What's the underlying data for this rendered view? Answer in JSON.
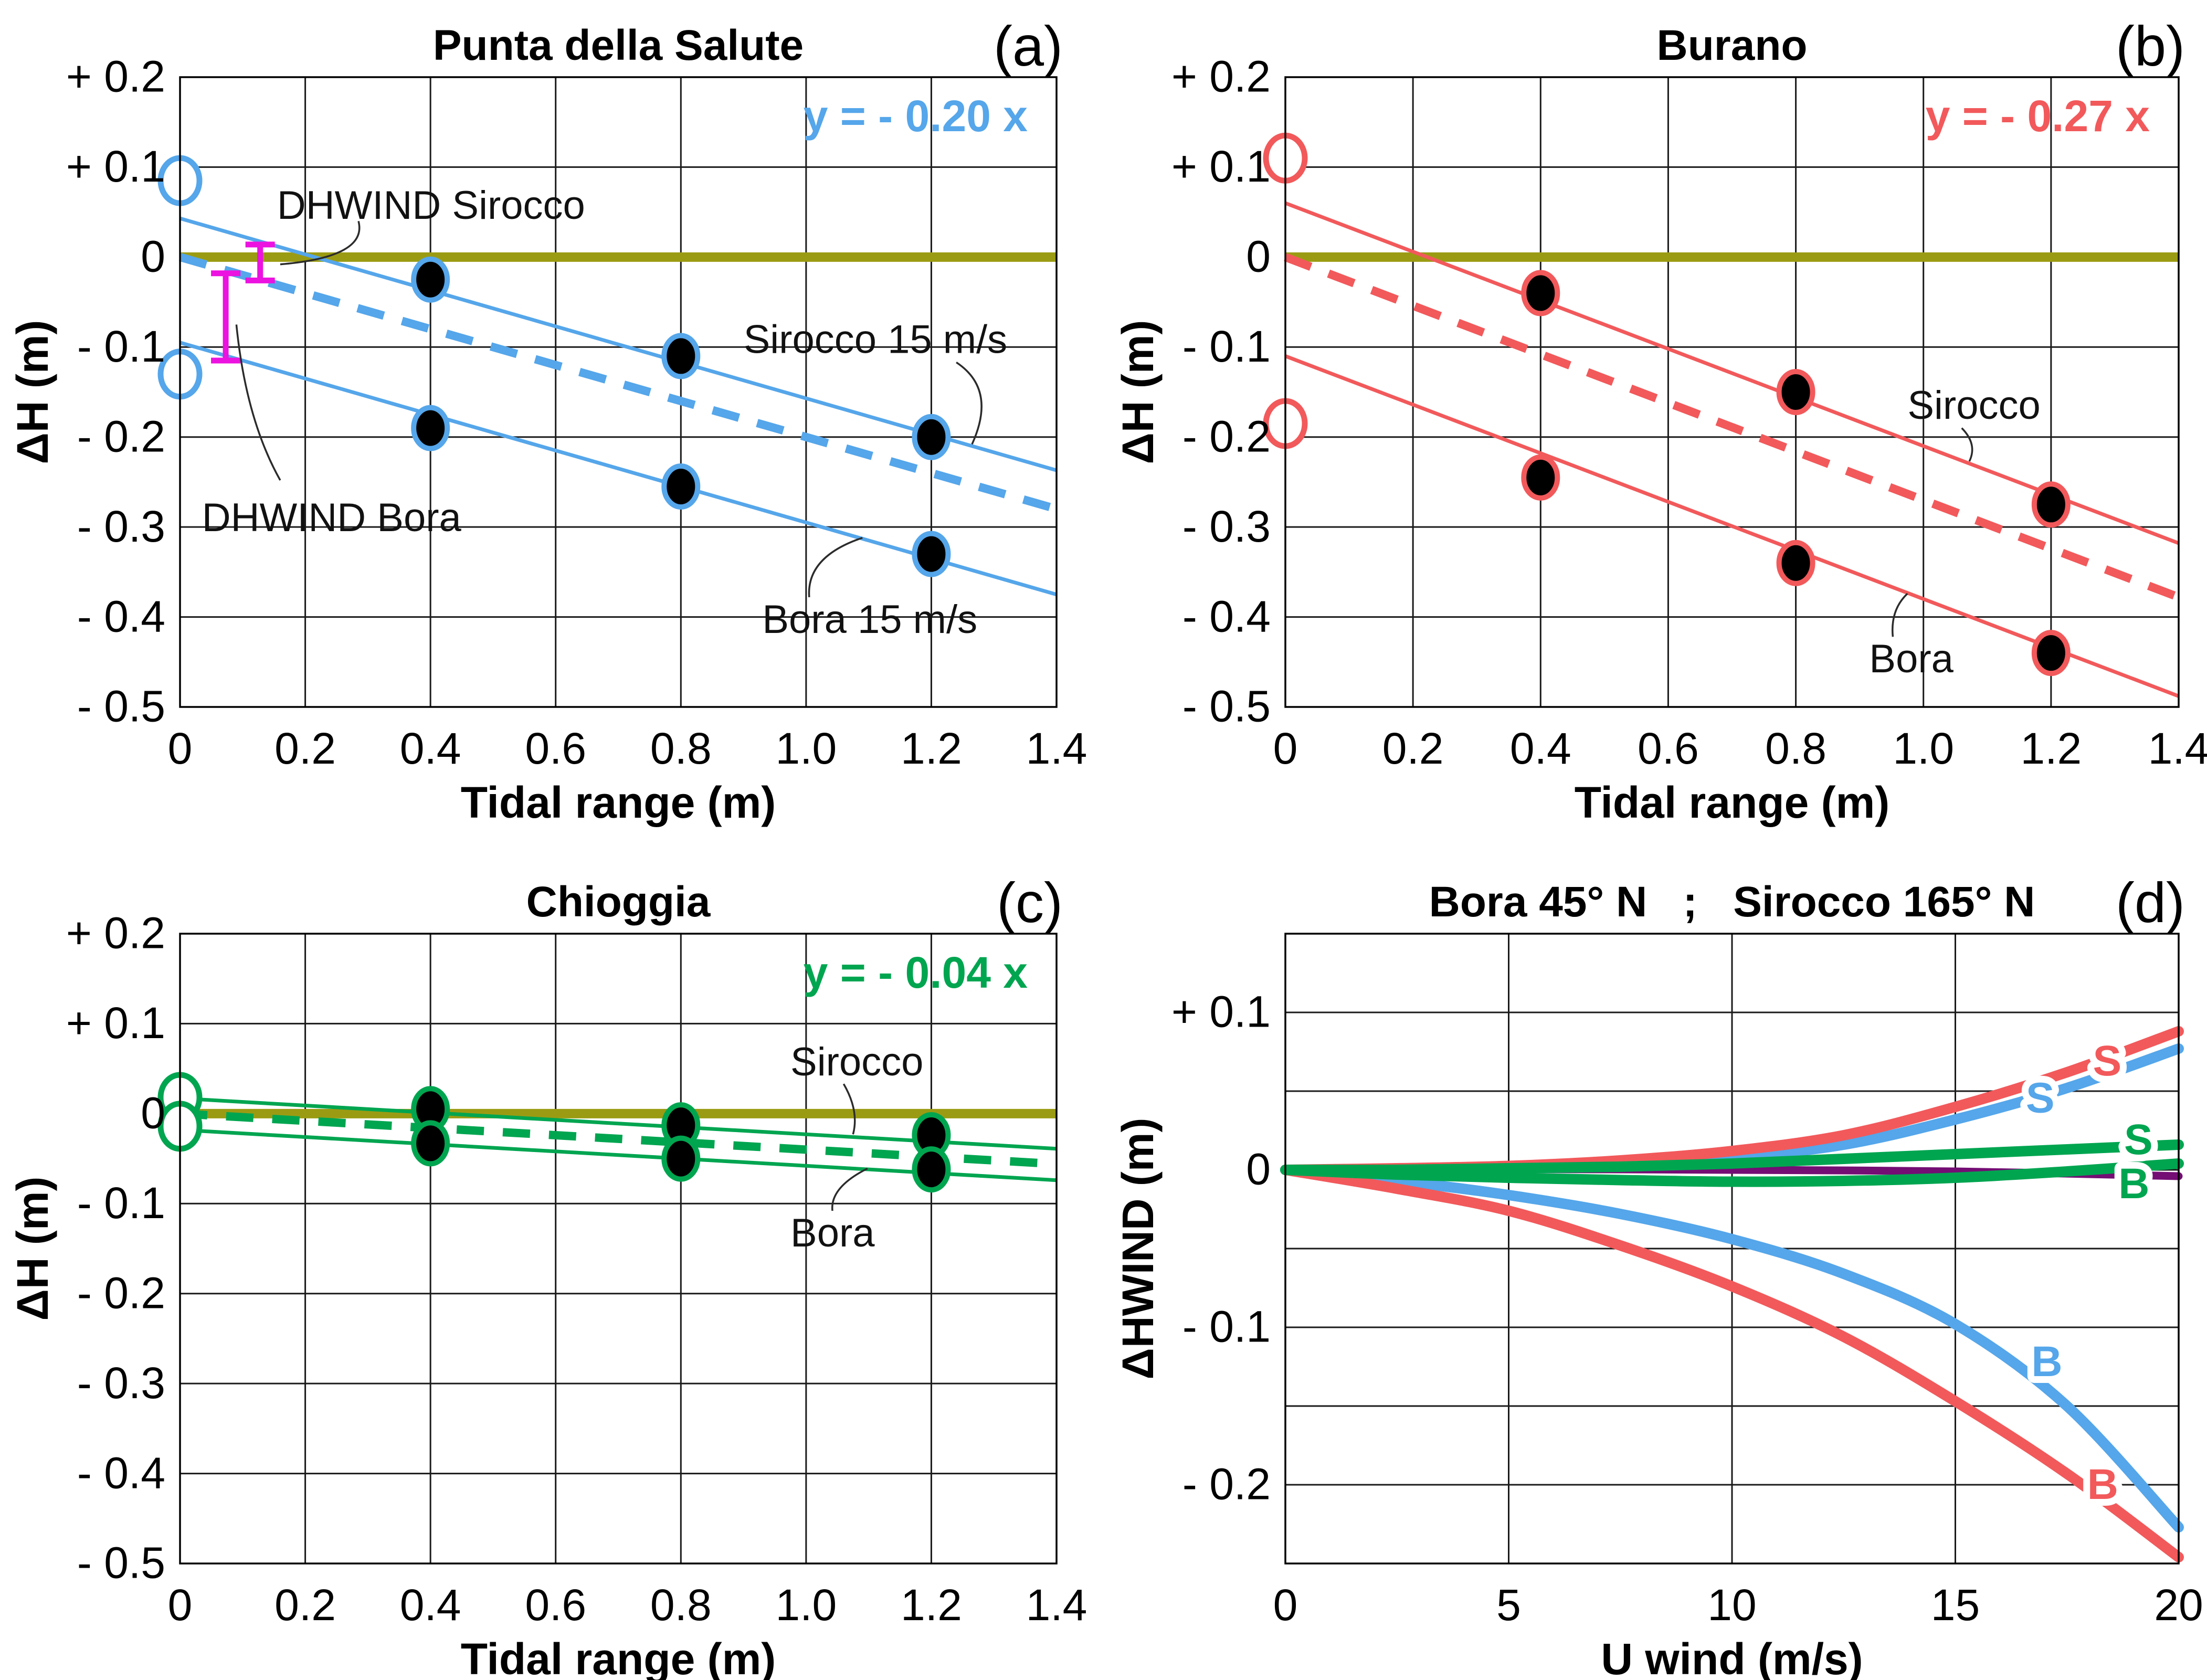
{
  "figure": {
    "background": "#ffffff",
    "grid_color": "#1a1a1a",
    "leader_color": "#2b2b2b",
    "zero_line_color": "#9B9B13",
    "error_bar_color": "#EC12E0"
  },
  "chart_data": [
    {
      "id": "a",
      "type": "scatter",
      "corner_label": "(a)",
      "title": "Punta della Salute",
      "equation": {
        "text": "y = - 0.20 x"
      },
      "accent_color": "#55A6EA",
      "xlabel": "Tidal range (m)",
      "ylabel": "ΔH (m)",
      "xlim": [
        0,
        1.4
      ],
      "ylim": [
        -0.5,
        0.2
      ],
      "xgrid": [
        0.2,
        0.4,
        0.6,
        0.8,
        1.0,
        1.2
      ],
      "ygrid": [
        0.1,
        0,
        -0.1,
        -0.2,
        -0.3,
        -0.4
      ],
      "xticks": [
        {
          "v": 0,
          "label": "0"
        },
        {
          "v": 0.2,
          "label": "0.2"
        },
        {
          "v": 0.4,
          "label": "0.4"
        },
        {
          "v": 0.6,
          "label": "0.6"
        },
        {
          "v": 0.8,
          "label": "0.8"
        },
        {
          "v": 1.0,
          "label": "1.0"
        },
        {
          "v": 1.2,
          "label": "1.2"
        },
        {
          "v": 1.4,
          "label": "1.4"
        }
      ],
      "yticks": [
        {
          "v": 0.2,
          "label": "+ 0.2"
        },
        {
          "v": 0.1,
          "label": "+ 0.1"
        },
        {
          "v": 0,
          "label": "0"
        },
        {
          "v": -0.1,
          "label": "- 0.1"
        },
        {
          "v": -0.2,
          "label": "- 0.2"
        },
        {
          "v": -0.3,
          "label": "- 0.3"
        },
        {
          "v": -0.4,
          "label": "- 0.4"
        },
        {
          "v": -0.5,
          "label": "- 0.5"
        }
      ],
      "fit_line": {
        "slope": -0.2
      },
      "wind_lines": [
        {
          "name": "sirocco-15",
          "p1": [
            0,
            0.043
          ],
          "p2": [
            1.4,
            -0.237
          ]
        },
        {
          "name": "bora-15",
          "p1": [
            0,
            -0.095
          ],
          "p2": [
            1.4,
            -0.375
          ]
        }
      ],
      "open_points": [
        [
          0,
          0.085
        ],
        [
          0,
          -0.13
        ]
      ],
      "filled_points": {
        "sirocco": [
          [
            0.4,
            -0.025
          ],
          [
            0.8,
            -0.11
          ],
          [
            1.2,
            -0.2
          ]
        ],
        "bora": [
          [
            0.4,
            -0.19
          ],
          [
            0.8,
            -0.255
          ],
          [
            1.2,
            -0.33
          ]
        ]
      },
      "error_bars": [
        {
          "x": 0.128,
          "y_top": 0.014,
          "y_bottom": -0.026
        },
        {
          "x": 0.073,
          "y_top": -0.018,
          "y_bottom": -0.115
        }
      ],
      "annotations": [
        {
          "text": "DHWIND Sirocco",
          "x": 0.155,
          "y": 0.057,
          "leader": [
            [
              0.285,
              0.04
            ],
            [
              0.3,
              0.0
            ],
            [
              0.16,
              -0.008
            ]
          ]
        },
        {
          "text": "DHWIND Bora",
          "x": 0.035,
          "y": -0.29,
          "leader": [
            [
              0.09,
              -0.075
            ],
            [
              0.105,
              -0.18
            ],
            [
              0.16,
              -0.248
            ]
          ]
        },
        {
          "text": "Sirocco 15 m/s",
          "x": 0.9,
          "y": -0.092,
          "leader": [
            [
              1.24,
              -0.117
            ],
            [
              1.305,
              -0.147
            ],
            [
              1.265,
              -0.208
            ]
          ]
        },
        {
          "text": "Bora 15 m/s",
          "x": 0.93,
          "y": -0.403,
          "leader": [
            [
              1.005,
              -0.378
            ],
            [
              1.0,
              -0.333
            ],
            [
              1.09,
              -0.312
            ]
          ]
        }
      ]
    },
    {
      "id": "b",
      "type": "scatter",
      "corner_label": "(b)",
      "title": "Burano",
      "equation": {
        "text": "y = - 0.27 x"
      },
      "accent_color": "#F2595B",
      "xlabel": "Tidal range (m)",
      "ylabel": "ΔH (m)",
      "xlim": [
        0,
        1.4
      ],
      "ylim": [
        -0.5,
        0.2
      ],
      "xgrid": [
        0.2,
        0.4,
        0.6,
        0.8,
        1.0,
        1.2
      ],
      "ygrid": [
        0.1,
        0,
        -0.1,
        -0.2,
        -0.3,
        -0.4
      ],
      "xticks": [
        {
          "v": 0,
          "label": "0"
        },
        {
          "v": 0.2,
          "label": "0.2"
        },
        {
          "v": 0.4,
          "label": "0.4"
        },
        {
          "v": 0.6,
          "label": "0.6"
        },
        {
          "v": 0.8,
          "label": "0.8"
        },
        {
          "v": 1.0,
          "label": "1.0"
        },
        {
          "v": 1.2,
          "label": "1.2"
        },
        {
          "v": 1.4,
          "label": "1.4"
        }
      ],
      "yticks": [
        {
          "v": 0.2,
          "label": "+ 0.2"
        },
        {
          "v": 0.1,
          "label": "+ 0.1"
        },
        {
          "v": 0,
          "label": "0"
        },
        {
          "v": -0.1,
          "label": "- 0.1"
        },
        {
          "v": -0.2,
          "label": "- 0.2"
        },
        {
          "v": -0.3,
          "label": "- 0.3"
        },
        {
          "v": -0.4,
          "label": "- 0.4"
        },
        {
          "v": -0.5,
          "label": "- 0.5"
        }
      ],
      "fit_line": {
        "slope": -0.27
      },
      "wind_lines": [
        {
          "name": "sirocco",
          "p1": [
            0,
            0.06
          ],
          "p2": [
            1.4,
            -0.318
          ]
        },
        {
          "name": "bora",
          "p1": [
            0,
            -0.11
          ],
          "p2": [
            1.4,
            -0.488
          ]
        }
      ],
      "open_points": [
        [
          0,
          0.11
        ],
        [
          0,
          -0.185
        ]
      ],
      "filled_points": {
        "sirocco": [
          [
            0.4,
            -0.04
          ],
          [
            0.8,
            -0.15
          ],
          [
            1.2,
            -0.275
          ]
        ],
        "bora": [
          [
            0.4,
            -0.245
          ],
          [
            0.8,
            -0.34
          ],
          [
            1.2,
            -0.44
          ]
        ]
      },
      "error_bars": [],
      "annotations": [
        {
          "text": "Sirocco",
          "x": 0.975,
          "y": -0.165,
          "leader": [
            [
              1.06,
              -0.19
            ],
            [
              1.085,
              -0.208
            ],
            [
              1.072,
              -0.227
            ]
          ]
        },
        {
          "text": "Bora",
          "x": 0.915,
          "y": -0.447,
          "leader": [
            [
              0.952,
              -0.422
            ],
            [
              0.948,
              -0.392
            ],
            [
              0.975,
              -0.374
            ]
          ]
        }
      ]
    },
    {
      "id": "c",
      "type": "scatter",
      "corner_label": "(c)",
      "title": "Chioggia",
      "equation": {
        "text": "y = - 0.04 x"
      },
      "accent_color": "#00A550",
      "xlabel": "Tidal range (m)",
      "ylabel": "ΔH (m)",
      "xlim": [
        0,
        1.4
      ],
      "ylim": [
        -0.5,
        0.2
      ],
      "xgrid": [
        0.2,
        0.4,
        0.6,
        0.8,
        1.0,
        1.2
      ],
      "ygrid": [
        0.1,
        0,
        -0.1,
        -0.2,
        -0.3,
        -0.4
      ],
      "xticks": [
        {
          "v": 0,
          "label": "0"
        },
        {
          "v": 0.2,
          "label": "0.2"
        },
        {
          "v": 0.4,
          "label": "0.4"
        },
        {
          "v": 0.6,
          "label": "0.6"
        },
        {
          "v": 0.8,
          "label": "0.8"
        },
        {
          "v": 1.0,
          "label": "1.0"
        },
        {
          "v": 1.2,
          "label": "1.2"
        },
        {
          "v": 1.4,
          "label": "1.4"
        }
      ],
      "yticks": [
        {
          "v": 0.2,
          "label": "+ 0.2"
        },
        {
          "v": 0.1,
          "label": "+ 0.1"
        },
        {
          "v": 0,
          "label": "0"
        },
        {
          "v": -0.1,
          "label": "- 0.1"
        },
        {
          "v": -0.2,
          "label": "- 0.2"
        },
        {
          "v": -0.3,
          "label": "- 0.3"
        },
        {
          "v": -0.4,
          "label": "- 0.4"
        },
        {
          "v": -0.5,
          "label": "- 0.5"
        }
      ],
      "fit_line": {
        "slope": -0.04
      },
      "wind_lines": [
        {
          "name": "sirocco",
          "p1": [
            0,
            0.017
          ],
          "p2": [
            1.4,
            -0.039
          ]
        },
        {
          "name": "bora",
          "p1": [
            0,
            -0.018
          ],
          "p2": [
            1.4,
            -0.074
          ]
        }
      ],
      "open_points": [
        [
          0,
          0.018
        ],
        [
          0,
          -0.014
        ]
      ],
      "filled_points": {
        "sirocco": [
          [
            0.4,
            0.005
          ],
          [
            0.8,
            -0.013
          ],
          [
            1.2,
            -0.024
          ]
        ],
        "bora": [
          [
            0.4,
            -0.033
          ],
          [
            0.8,
            -0.05
          ],
          [
            1.2,
            -0.062
          ]
        ]
      },
      "error_bars": [],
      "annotations": [
        {
          "text": "Sirocco",
          "x": 0.975,
          "y": 0.057,
          "leader": [
            [
              1.06,
              0.033
            ],
            [
              1.085,
              0.003
            ],
            [
              1.075,
              -0.023
            ]
          ]
        },
        {
          "text": "Bora",
          "x": 0.975,
          "y": -0.133,
          "leader": [
            [
              1.042,
              -0.108
            ],
            [
              1.038,
              -0.082
            ],
            [
              1.098,
              -0.061
            ]
          ]
        }
      ]
    },
    {
      "id": "d",
      "type": "line",
      "corner_label": "(d)",
      "title": "Bora 45° N   ;   Sirocco 165° N",
      "accent_color": "#111111",
      "xlabel": "U wind (m/s)",
      "ylabel": "ΔHWIND (m)",
      "xlim": [
        0,
        20
      ],
      "ylim": [
        -0.25,
        0.15
      ],
      "xgrid": [
        5,
        10,
        15
      ],
      "ygrid": [
        0.1,
        0.05,
        0,
        -0.05,
        -0.1,
        -0.15,
        -0.2
      ],
      "xticks": [
        {
          "v": 0,
          "label": "0"
        },
        {
          "v": 5,
          "label": "5"
        },
        {
          "v": 10,
          "label": "10"
        },
        {
          "v": 15,
          "label": "15"
        },
        {
          "v": 20,
          "label": "20"
        }
      ],
      "yticks": [
        {
          "v": 0.1,
          "label": "+ 0.1"
        },
        {
          "v": 0,
          "label": "0"
        },
        {
          "v": -0.1,
          "label": "- 0.1"
        },
        {
          "v": -0.2,
          "label": "- 0.2"
        }
      ],
      "series": [
        {
          "name": "purple-curve",
          "label": "",
          "color": "#740D74",
          "width": 15,
          "points": [
            [
              0,
              0
            ],
            [
              5,
              0.0005
            ],
            [
              10,
              0
            ],
            [
              15,
              -0.001
            ],
            [
              20,
              -0.004
            ]
          ]
        },
        {
          "name": "sirocco-blue",
          "label": "S",
          "color": "#55A6EA",
          "width": 20,
          "points": [
            [
              0,
              0
            ],
            [
              2.5,
              0.0005
            ],
            [
              5,
              0.0015
            ],
            [
              7.5,
              0.004
            ],
            [
              10,
              0.008
            ],
            [
              12.5,
              0.016
            ],
            [
              15,
              0.032
            ],
            [
              17.5,
              0.052
            ],
            [
              20,
              0.077
            ]
          ],
          "label_pos": [
            16.9,
            0.0455
          ]
        },
        {
          "name": "sirocco-red",
          "label": "S",
          "color": "#F2595B",
          "width": 20,
          "points": [
            [
              0,
              0
            ],
            [
              2.5,
              0.001
            ],
            [
              5,
              0.0025
            ],
            [
              7.5,
              0.006
            ],
            [
              10,
              0.012
            ],
            [
              12.5,
              0.022
            ],
            [
              15,
              0.04
            ],
            [
              17.5,
              0.062
            ],
            [
              20,
              0.088
            ]
          ],
          "label_pos": [
            18.4,
            0.069
          ]
        },
        {
          "name": "bora-blue",
          "label": "B",
          "color": "#55A6EA",
          "width": 20,
          "points": [
            [
              0,
              0
            ],
            [
              2.5,
              -0.007
            ],
            [
              5,
              -0.016
            ],
            [
              7.5,
              -0.028
            ],
            [
              10,
              -0.044
            ],
            [
              12.5,
              -0.066
            ],
            [
              15,
              -0.098
            ],
            [
              17.5,
              -0.15
            ],
            [
              20,
              -0.227
            ]
          ],
          "label_pos": [
            17.05,
            -0.122
          ]
        },
        {
          "name": "bora-red",
          "label": "B",
          "color": "#F2595B",
          "width": 20,
          "points": [
            [
              0,
              0
            ],
            [
              2.5,
              -0.012
            ],
            [
              5,
              -0.026
            ],
            [
              7.5,
              -0.048
            ],
            [
              10,
              -0.074
            ],
            [
              12.5,
              -0.106
            ],
            [
              15,
              -0.147
            ],
            [
              17.5,
              -0.193
            ],
            [
              20,
              -0.246
            ]
          ],
          "label_pos": [
            18.3,
            -0.2
          ]
        },
        {
          "name": "sirocco-green",
          "label": "S",
          "color": "#00A550",
          "width": 20,
          "points": [
            [
              0,
              0
            ],
            [
              2.5,
              0
            ],
            [
              5,
              0.001
            ],
            [
              7.5,
              0.002
            ],
            [
              10,
              0.004
            ],
            [
              12.5,
              0.007
            ],
            [
              15,
              0.01
            ],
            [
              17.5,
              0.013
            ],
            [
              20,
              0.016
            ]
          ],
          "label_pos": [
            19.1,
            0.019
          ]
        },
        {
          "name": "bora-green",
          "label": "B",
          "color": "#00A550",
          "width": 20,
          "points": [
            [
              0,
              0
            ],
            [
              2.5,
              -0.003
            ],
            [
              5,
              -0.005
            ],
            [
              7.5,
              -0.0065
            ],
            [
              10,
              -0.0075
            ],
            [
              12.5,
              -0.007
            ],
            [
              15,
              -0.005
            ],
            [
              17.5,
              -0.001
            ],
            [
              20,
              0.004
            ]
          ],
          "label_pos": [
            19.0,
            -0.009
          ]
        }
      ]
    }
  ]
}
